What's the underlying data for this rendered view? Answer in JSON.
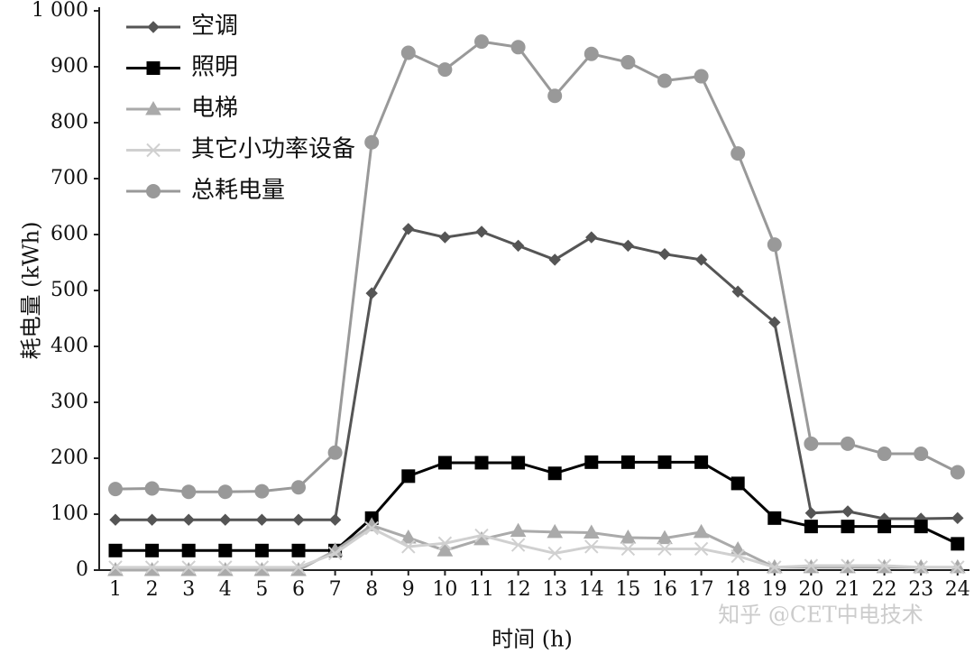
{
  "chart_data": {
    "type": "line",
    "x_label": "时间 (h)",
    "y_label": "耗电量 (kWh)",
    "watermark": "知乎 @CET中电技术",
    "categories": [
      "1",
      "2",
      "3",
      "4",
      "5",
      "6",
      "7",
      "8",
      "9",
      "10",
      "11",
      "12",
      "13",
      "14",
      "15",
      "16",
      "17",
      "18",
      "19",
      "20",
      "21",
      "22",
      "23",
      "24"
    ],
    "ylim": [
      0,
      1000
    ],
    "yticks": [
      0,
      100,
      200,
      300,
      400,
      500,
      600,
      700,
      800,
      900,
      {
        "value": 1000,
        "label": "1 000"
      }
    ],
    "grid": false,
    "legend": "upper left",
    "series": [
      {
        "name": "空调",
        "color": "#555555",
        "marker": "diamond",
        "values": [
          90,
          90,
          90,
          90,
          90,
          90,
          90,
          495,
          610,
          595,
          605,
          580,
          555,
          595,
          580,
          565,
          555,
          498,
          443,
          102,
          105,
          92,
          92,
          93
        ]
      },
      {
        "name": "照明",
        "color": "#000000",
        "marker": "square",
        "values": [
          35,
          35,
          35,
          35,
          35,
          35,
          35,
          93,
          168,
          192,
          192,
          192,
          173,
          193,
          193,
          193,
          193,
          155,
          93,
          78,
          78,
          78,
          78,
          47
        ]
      },
      {
        "name": "电梯",
        "color": "#aaaaaa",
        "marker": "triangle",
        "values": [
          0,
          0,
          0,
          0,
          0,
          0,
          35,
          80,
          58,
          35,
          55,
          70,
          68,
          67,
          58,
          57,
          68,
          37,
          5,
          5,
          5,
          5,
          5,
          5
        ]
      },
      {
        "name": "其它小功率设备",
        "color": "#d0d0d0",
        "marker": "x",
        "values": [
          5,
          5,
          5,
          5,
          5,
          5,
          30,
          75,
          42,
          48,
          62,
          45,
          30,
          42,
          38,
          38,
          38,
          25,
          5,
          8,
          8,
          8,
          5,
          5
        ]
      },
      {
        "name": "总耗电量",
        "color": "#999999",
        "marker": "circle",
        "values": [
          145,
          146,
          140,
          140,
          141,
          148,
          210,
          765,
          925,
          895,
          945,
          935,
          848,
          923,
          908,
          875,
          883,
          745,
          582,
          226,
          226,
          208,
          208,
          175
        ]
      }
    ]
  }
}
